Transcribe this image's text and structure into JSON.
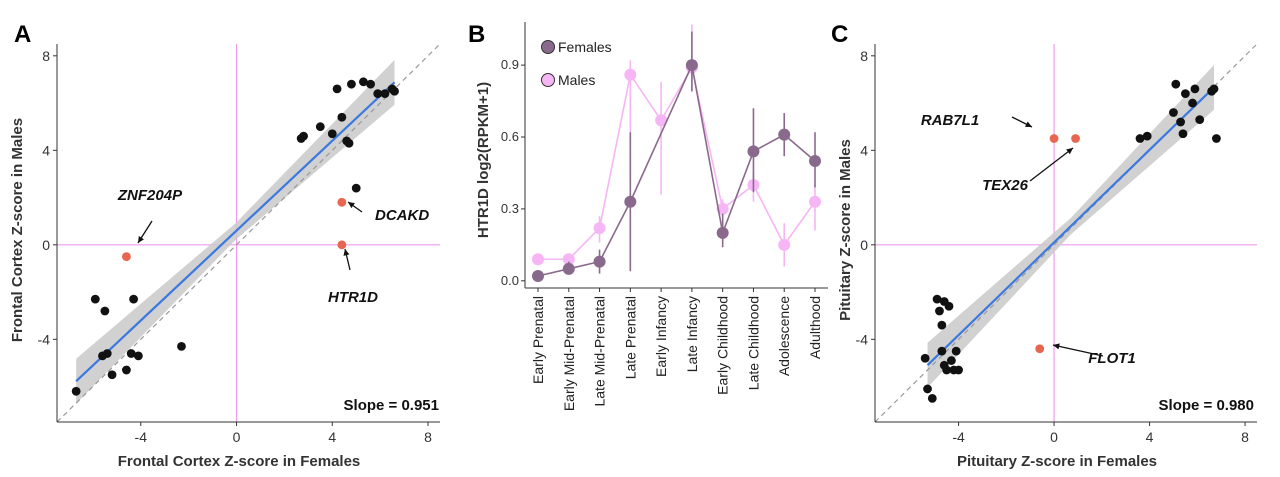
{
  "figure": {
    "panelA": {
      "letter": "A",
      "xlabel": "Frontal Cortex Z-score in Females",
      "ylabel": "Frontal Cortex Z-score in Males",
      "slope_text": "Slope = 0.951"
    },
    "panelB": {
      "letter": "B",
      "ylabel": "HTR1D log2(RPKM+1)"
    },
    "panelC": {
      "letter": "C",
      "xlabel": "Pituitary Z-score in Females",
      "ylabel": "Pituitary Z-score in Males",
      "slope_text": "Slope = 0.980"
    }
  },
  "colors": {
    "point": "#111111",
    "highlight": "#e8654f",
    "fit_line": "#3b78e0",
    "ci_band": "#c9c9c9",
    "reference": "#ee9cee",
    "females": "#8a6a8c",
    "males": "#f6b6f6",
    "identity": "#999999"
  },
  "chart_data": [
    {
      "type": "scatter",
      "id": "A",
      "xlabel": "Frontal Cortex Z-score in Females",
      "ylabel": "Frontal Cortex Z-score in Males",
      "xlim": [
        -7.5,
        8.5
      ],
      "ylim": [
        -7.5,
        8.5
      ],
      "xticks": [
        -4,
        0,
        4,
        8
      ],
      "yticks": [
        -4,
        0,
        4,
        8
      ],
      "xtick_labels": [
        "-4",
        "0",
        "4",
        "8"
      ],
      "ytick_labels": [
        "-4",
        "0",
        "4",
        "8"
      ],
      "fit": {
        "slope": 0.951,
        "intercept": 0.6,
        "x_range": [
          -6.7,
          6.6
        ]
      },
      "slope_text": "Slope = 0.951",
      "points": [
        {
          "x": -6.7,
          "y": -6.2
        },
        {
          "x": -5.9,
          "y": -2.3
        },
        {
          "x": -5.6,
          "y": -4.7
        },
        {
          "x": -5.5,
          "y": -2.8
        },
        {
          "x": -5.4,
          "y": -4.6
        },
        {
          "x": -5.2,
          "y": -5.5
        },
        {
          "x": -4.6,
          "y": -5.3
        },
        {
          "x": -4.4,
          "y": -4.6
        },
        {
          "x": -4.3,
          "y": -2.3
        },
        {
          "x": -4.1,
          "y": -4.7
        },
        {
          "x": -2.3,
          "y": -4.3
        },
        {
          "x": 2.7,
          "y": 4.5
        },
        {
          "x": 2.8,
          "y": 4.6
        },
        {
          "x": 3.5,
          "y": 5.0
        },
        {
          "x": 4.0,
          "y": 4.7
        },
        {
          "x": 4.2,
          "y": 6.6
        },
        {
          "x": 4.4,
          "y": 5.4
        },
        {
          "x": 4.6,
          "y": 4.4
        },
        {
          "x": 4.7,
          "y": 4.3
        },
        {
          "x": 4.8,
          "y": 6.8
        },
        {
          "x": 5.0,
          "y": 2.4
        },
        {
          "x": 5.3,
          "y": 6.9
        },
        {
          "x": 5.6,
          "y": 6.8
        },
        {
          "x": 5.9,
          "y": 6.4
        },
        {
          "x": 6.2,
          "y": 6.4
        },
        {
          "x": 6.5,
          "y": 6.6
        },
        {
          "x": 6.6,
          "y": 6.5
        }
      ],
      "highlighted": [
        {
          "x": -4.6,
          "y": -0.5,
          "label": "ZNF204P"
        },
        {
          "x": 4.4,
          "y": 1.8,
          "label": "DCAKD"
        },
        {
          "x": 4.4,
          "y": 0.0,
          "label": "HTR1D"
        }
      ]
    },
    {
      "type": "line",
      "id": "B",
      "ylabel": "HTR1D log2(RPKM+1)",
      "categories": [
        "Early Prenatal",
        "Early Mid-Prenatal",
        "Late Mid-Prenatal",
        "Late Prenatal",
        "Early Infancy",
        "Late Infancy",
        "Early Childhood",
        "Late Childhood",
        "Adolescence",
        "Adulthood"
      ],
      "ylim": [
        -0.03,
        1.08
      ],
      "yticks": [
        0.0,
        0.3,
        0.6,
        0.9
      ],
      "ytick_labels": [
        "0.0",
        "0.3",
        "0.6",
        "0.9"
      ],
      "legend_position": "top-left",
      "series": [
        {
          "name": "Females",
          "color_key": "females",
          "values": [
            0.02,
            0.05,
            0.08,
            0.33,
            null,
            0.9,
            0.2,
            0.54,
            0.61,
            0.5
          ],
          "err_low": [
            0.0,
            0.03,
            0.03,
            0.04,
            null,
            0.79,
            0.14,
            0.37,
            0.52,
            0.39
          ],
          "err_high": [
            0.04,
            0.08,
            0.13,
            0.62,
            null,
            1.04,
            0.28,
            0.72,
            0.7,
            0.62
          ]
        },
        {
          "name": "Males",
          "color_key": "males",
          "values": [
            0.09,
            0.09,
            0.22,
            0.86,
            0.67,
            0.89,
            0.3,
            0.4,
            0.15,
            0.33
          ],
          "err_low": [
            0.07,
            0.07,
            0.16,
            0.62,
            0.36,
            0.79,
            0.27,
            0.33,
            0.06,
            0.21
          ],
          "err_high": [
            0.11,
            0.11,
            0.27,
            0.92,
            0.83,
            1.07,
            0.34,
            0.46,
            0.24,
            0.4
          ]
        }
      ]
    },
    {
      "type": "scatter",
      "id": "C",
      "xlabel": "Pituitary Z-score in Females",
      "ylabel": "Pituitary Z-score in Males",
      "xlim": [
        -7.5,
        8.5
      ],
      "ylim": [
        -7.5,
        8.5
      ],
      "xticks": [
        -4,
        0,
        4,
        8
      ],
      "yticks": [
        -4,
        0,
        4,
        8
      ],
      "xtick_labels": [
        "-4",
        "0",
        "4",
        "8"
      ],
      "ytick_labels": [
        "-4",
        "0",
        "4",
        "8"
      ],
      "fit": {
        "slope": 0.98,
        "intercept": 0.1,
        "x_range": [
          -5.3,
          6.7
        ]
      },
      "slope_text": "Slope = 0.980",
      "points": [
        {
          "x": -5.4,
          "y": -4.8
        },
        {
          "x": -5.3,
          "y": -6.1
        },
        {
          "x": -5.1,
          "y": -6.5
        },
        {
          "x": -4.9,
          "y": -2.3
        },
        {
          "x": -4.8,
          "y": -2.8
        },
        {
          "x": -4.7,
          "y": -3.4
        },
        {
          "x": -4.7,
          "y": -4.5
        },
        {
          "x": -4.6,
          "y": -2.4
        },
        {
          "x": -4.6,
          "y": -5.1
        },
        {
          "x": -4.5,
          "y": -5.3
        },
        {
          "x": -4.4,
          "y": -2.6
        },
        {
          "x": -4.3,
          "y": -4.9
        },
        {
          "x": -4.2,
          "y": -5.3
        },
        {
          "x": -4.1,
          "y": -4.5
        },
        {
          "x": -4.0,
          "y": -5.3
        },
        {
          "x": 3.6,
          "y": 4.5
        },
        {
          "x": 3.9,
          "y": 4.6
        },
        {
          "x": 5.0,
          "y": 5.6
        },
        {
          "x": 5.1,
          "y": 6.8
        },
        {
          "x": 5.3,
          "y": 5.2
        },
        {
          "x": 5.4,
          "y": 4.7
        },
        {
          "x": 5.5,
          "y": 6.4
        },
        {
          "x": 5.8,
          "y": 6.0
        },
        {
          "x": 5.9,
          "y": 6.6
        },
        {
          "x": 6.1,
          "y": 5.3
        },
        {
          "x": 6.6,
          "y": 6.5
        },
        {
          "x": 6.7,
          "y": 6.6
        },
        {
          "x": 6.8,
          "y": 4.5
        }
      ],
      "highlighted": [
        {
          "x": 0.0,
          "y": 4.5,
          "label": "RAB7L1"
        },
        {
          "x": 0.9,
          "y": 4.5,
          "label": "TEX26"
        },
        {
          "x": -0.6,
          "y": -4.4,
          "label": "FLOT1"
        }
      ]
    }
  ]
}
